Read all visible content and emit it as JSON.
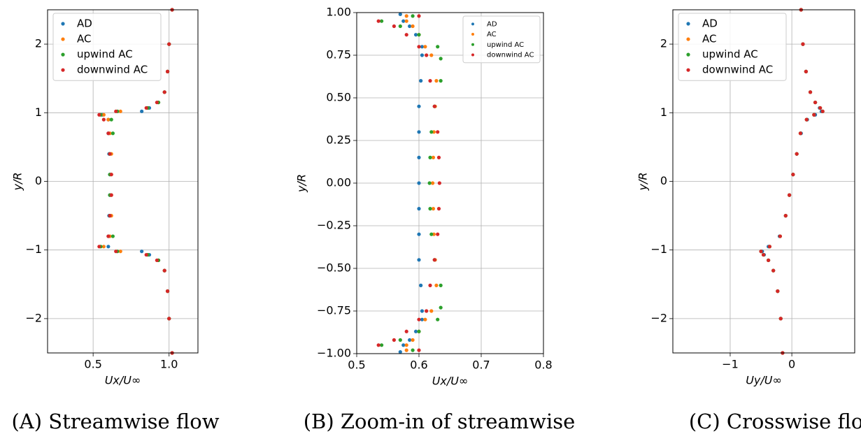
{
  "chart_data": [
    {
      "type": "scatter",
      "caption": "(A) Streamwise flow",
      "x_label": "Ux/U∞",
      "y_label": "y/R",
      "xlim": [
        0.2,
        1.19
      ],
      "ylim": [
        -2.5,
        2.5
      ],
      "grid": true,
      "legend": "upper left",
      "xticks": [
        0.5,
        {
          "value": 1.0,
          "label": "1.0"
        }
      ],
      "yticks": [
        {
          "value": -2,
          "label": "−2"
        },
        {
          "value": -1,
          "label": "−1"
        },
        0,
        1,
        2
      ],
      "series": [
        {
          "name": "AD",
          "color": "#1f77b4",
          "x": [
            1.02,
            1.0,
            0.99,
            0.97,
            0.93,
            0.87,
            0.82,
            0.56,
            0.6,
            0.6,
            0.605,
            0.61,
            0.61,
            0.605,
            0.6,
            0.6,
            0.82,
            0.87,
            0.93,
            0.97,
            0.99,
            1.0,
            1.02
          ],
          "y": [
            2.5,
            2.0,
            1.6,
            1.3,
            1.15,
            1.07,
            1.02,
            0.97,
            0.9,
            0.7,
            0.4,
            0.1,
            -0.2,
            -0.5,
            -0.8,
            -0.95,
            -1.02,
            -1.07,
            -1.15,
            -1.3,
            -1.6,
            -2.0,
            -2.5
          ]
        },
        {
          "name": "AC",
          "color": "#ff7f0e",
          "x": [
            1.02,
            1.0,
            0.99,
            0.97,
            0.93,
            0.86,
            0.68,
            0.57,
            0.6,
            0.61,
            0.62,
            0.62,
            0.62,
            0.62,
            0.61,
            0.57,
            0.68,
            0.86,
            0.93,
            0.97,
            0.99,
            1.0,
            1.02
          ],
          "y": [
            2.5,
            2.0,
            1.6,
            1.3,
            1.15,
            1.07,
            1.02,
            0.97,
            0.9,
            0.7,
            0.4,
            0.1,
            -0.2,
            -0.5,
            -0.8,
            -0.95,
            -1.02,
            -1.07,
            -1.15,
            -1.3,
            -1.6,
            -2.0,
            -2.5
          ]
        },
        {
          "name": "upwind AC",
          "color": "#2ca02c",
          "x": [
            1.02,
            1.0,
            0.99,
            0.97,
            0.93,
            0.86,
            0.66,
            0.55,
            0.62,
            0.63,
            0.61,
            0.61,
            0.61,
            0.61,
            0.63,
            0.55,
            0.66,
            0.86,
            0.93,
            0.97,
            0.99,
            1.0,
            1.02
          ],
          "y": [
            2.5,
            2.0,
            1.6,
            1.3,
            1.15,
            1.07,
            1.02,
            0.97,
            0.9,
            0.7,
            0.4,
            0.1,
            -0.2,
            -0.5,
            -0.8,
            -0.95,
            -1.02,
            -1.07,
            -1.15,
            -1.3,
            -1.6,
            -2.0,
            -2.5
          ]
        },
        {
          "name": "downwind AC",
          "color": "#d62728",
          "x": [
            1.02,
            1.0,
            0.99,
            0.97,
            0.92,
            0.85,
            0.65,
            0.54,
            0.57,
            0.6,
            0.61,
            0.62,
            0.62,
            0.61,
            0.6,
            0.54,
            0.65,
            0.85,
            0.92,
            0.97,
            0.99,
            1.0,
            1.02
          ],
          "y": [
            2.5,
            2.0,
            1.6,
            1.3,
            1.15,
            1.07,
            1.02,
            0.97,
            0.9,
            0.7,
            0.4,
            0.1,
            -0.2,
            -0.5,
            -0.8,
            -0.95,
            -1.02,
            -1.07,
            -1.15,
            -1.3,
            -1.6,
            -2.0,
            -2.5
          ]
        }
      ]
    },
    {
      "type": "scatter",
      "caption": "(B) Zoom-in of streamwise",
      "x_label": "Ux/U∞",
      "y_label": "y/R",
      "xlim": [
        0.5,
        0.8
      ],
      "ylim": [
        -1.0,
        1.0
      ],
      "grid": true,
      "legend": "upper right",
      "xticks": [
        0.5,
        0.6,
        0.7,
        0.8
      ],
      "yticks": [
        {
          "value": -1.0,
          "label": "−1.00"
        },
        {
          "value": -0.75,
          "label": "−0.75"
        },
        {
          "value": -0.5,
          "label": "−0.50"
        },
        {
          "value": -0.25,
          "label": "−0.25"
        },
        {
          "value": 0,
          "label": "0.00"
        },
        {
          "value": 0.25,
          "label": "0.25"
        },
        {
          "value": 0.5,
          "label": "0.50"
        },
        {
          "value": 0.75,
          "label": "0.75"
        },
        {
          "value": 1.0,
          "label": "1.00"
        }
      ],
      "series": [
        {
          "name": "AD",
          "color": "#1f77b4",
          "x": [
            0.57,
            0.575,
            0.585,
            0.595,
            0.605,
            0.605,
            0.603,
            0.6,
            0.6,
            0.6,
            0.6,
            0.6,
            0.6,
            0.6,
            0.603,
            0.605,
            0.605,
            0.595,
            0.585,
            0.575,
            0.57
          ],
          "y": [
            0.99,
            0.95,
            0.92,
            0.87,
            0.8,
            0.75,
            0.6,
            0.45,
            0.3,
            0.15,
            0,
            -0.15,
            -0.3,
            -0.45,
            -0.6,
            -0.75,
            -0.8,
            -0.87,
            -0.92,
            -0.95,
            -0.99
          ]
        },
        {
          "name": "AC",
          "color": "#ff7f0e",
          "x": [
            0.58,
            0.58,
            0.59,
            0.6,
            0.61,
            0.62,
            0.628,
            0.626,
            0.624,
            0.623,
            0.622,
            0.623,
            0.624,
            0.626,
            0.628,
            0.62,
            0.61,
            0.6,
            0.59,
            0.58,
            0.58
          ],
          "y": [
            0.98,
            0.95,
            0.92,
            0.87,
            0.8,
            0.75,
            0.6,
            0.45,
            0.3,
            0.15,
            0,
            -0.15,
            -0.3,
            -0.45,
            -0.6,
            -0.75,
            -0.8,
            -0.87,
            -0.92,
            -0.95,
            -0.98
          ]
        },
        {
          "name": "upwind AC",
          "color": "#2ca02c",
          "x": [
            0.59,
            0.54,
            0.57,
            0.6,
            0.63,
            0.635,
            0.635,
            0.625,
            0.62,
            0.618,
            0.617,
            0.618,
            0.62,
            0.625,
            0.635,
            0.635,
            0.63,
            0.6,
            0.57,
            0.54,
            0.59
          ],
          "y": [
            0.98,
            0.95,
            0.92,
            0.87,
            0.8,
            0.73,
            0.6,
            0.45,
            0.3,
            0.15,
            0,
            -0.15,
            -0.3,
            -0.45,
            -0.6,
            -0.73,
            -0.8,
            -0.87,
            -0.92,
            -0.95,
            -0.98
          ]
        },
        {
          "name": "downwind AC",
          "color": "#d62728",
          "x": [
            0.6,
            0.535,
            0.56,
            0.58,
            0.6,
            0.612,
            0.618,
            0.625,
            0.63,
            0.632,
            0.633,
            0.632,
            0.63,
            0.625,
            0.618,
            0.612,
            0.6,
            0.58,
            0.56,
            0.535,
            0.6
          ],
          "y": [
            0.98,
            0.95,
            0.92,
            0.87,
            0.8,
            0.75,
            0.6,
            0.45,
            0.3,
            0.15,
            0,
            -0.15,
            -0.3,
            -0.45,
            -0.6,
            -0.75,
            -0.8,
            -0.87,
            -0.92,
            -0.95,
            -0.98
          ]
        }
      ]
    },
    {
      "type": "scatter",
      "caption": "(C) Crosswise flow",
      "x_label": "Uy/U∞",
      "y_label": "y/R",
      "xlim": [
        -1.93,
        1.02
      ],
      "ylim": [
        -2.5,
        2.5
      ],
      "grid": true,
      "legend": "upper left",
      "xticks": [
        {
          "value": -1,
          "label": "−1"
        },
        0
      ],
      "yticks": [
        {
          "value": -2,
          "label": "−2"
        },
        {
          "value": -1,
          "label": "−1"
        },
        0,
        1,
        2
      ],
      "series": [
        {
          "name": "AD",
          "color": "#1f77b4",
          "x": [
            0.15,
            0.18,
            0.23,
            0.3,
            0.38,
            0.45,
            0.48,
            0.38,
            0.25,
            0.15,
            0.08,
            0.02,
            -0.04,
            -0.1,
            -0.2,
            -0.38,
            -0.48,
            -0.45,
            -0.38,
            -0.3,
            -0.23,
            -0.18,
            -0.15
          ],
          "y": [
            2.5,
            2.0,
            1.6,
            1.3,
            1.15,
            1.07,
            1.02,
            0.97,
            0.9,
            0.7,
            0.4,
            0.1,
            -0.2,
            -0.5,
            -0.8,
            -0.95,
            -1.02,
            -1.07,
            -1.15,
            -1.3,
            -1.6,
            -2.0,
            -2.5
          ]
        },
        {
          "name": "AC",
          "color": "#ff7f0e",
          "x": [
            0.15,
            0.18,
            0.23,
            0.3,
            0.38,
            0.46,
            0.5,
            0.36,
            0.24,
            0.14,
            0.08,
            0.02,
            -0.04,
            -0.1,
            -0.19,
            -0.36,
            -0.5,
            -0.46,
            -0.38,
            -0.3,
            -0.23,
            -0.18,
            -0.15
          ],
          "y": [
            2.5,
            2.0,
            1.6,
            1.3,
            1.15,
            1.07,
            1.02,
            0.97,
            0.9,
            0.7,
            0.4,
            0.1,
            -0.2,
            -0.5,
            -0.8,
            -0.95,
            -1.02,
            -1.07,
            -1.15,
            -1.3,
            -1.6,
            -2.0,
            -2.5
          ]
        },
        {
          "name": "upwind AC",
          "color": "#2ca02c",
          "x": [
            0.15,
            0.18,
            0.23,
            0.3,
            0.38,
            0.46,
            0.5,
            0.36,
            0.24,
            0.14,
            0.08,
            0.02,
            -0.04,
            -0.1,
            -0.19,
            -0.36,
            -0.5,
            -0.46,
            -0.38,
            -0.3,
            -0.23,
            -0.18,
            -0.15
          ],
          "y": [
            2.5,
            2.0,
            1.6,
            1.3,
            1.15,
            1.07,
            1.02,
            0.97,
            0.9,
            0.7,
            0.4,
            0.1,
            -0.2,
            -0.5,
            -0.8,
            -0.95,
            -1.02,
            -1.07,
            -1.15,
            -1.3,
            -1.6,
            -2.0,
            -2.5
          ]
        },
        {
          "name": "downwind AC",
          "color": "#d62728",
          "x": [
            0.15,
            0.18,
            0.23,
            0.3,
            0.38,
            0.46,
            0.5,
            0.36,
            0.24,
            0.14,
            0.08,
            0.02,
            -0.04,
            -0.1,
            -0.19,
            -0.36,
            -0.5,
            -0.46,
            -0.38,
            -0.3,
            -0.23,
            -0.18,
            -0.15
          ],
          "y": [
            2.5,
            2.0,
            1.6,
            1.3,
            1.15,
            1.07,
            1.02,
            0.97,
            0.9,
            0.7,
            0.4,
            0.1,
            -0.2,
            -0.5,
            -0.8,
            -0.95,
            -1.02,
            -1.07,
            -1.15,
            -1.3,
            -1.6,
            -2.0,
            -2.5
          ]
        }
      ]
    }
  ]
}
